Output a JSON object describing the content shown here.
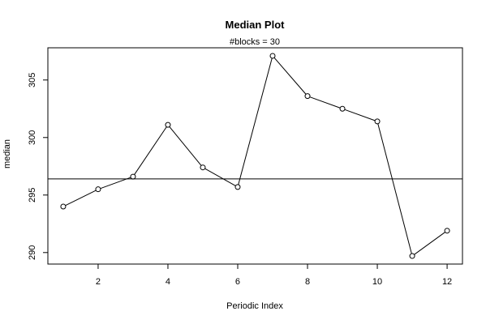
{
  "chart_data": {
    "type": "line",
    "title": "Median Plot",
    "subtitle": "#blocks =  30",
    "xlabel": "Periodic Index",
    "ylabel": "median",
    "x": [
      1,
      2,
      3,
      4,
      5,
      6,
      7,
      8,
      9,
      10,
      11,
      12
    ],
    "values": [
      294.0,
      295.5,
      296.6,
      301.1,
      297.4,
      295.7,
      307.1,
      303.6,
      302.5,
      301.4,
      289.7,
      291.9
    ],
    "hline": 296.4,
    "xlim": [
      0.56,
      12.44
    ],
    "ylim": [
      289.0,
      307.8
    ],
    "xticks": [
      2,
      4,
      6,
      8,
      10,
      12
    ],
    "yticks": [
      290,
      295,
      300,
      305
    ],
    "xtick_labels": [
      "2",
      "4",
      "6",
      "8",
      "10",
      "12"
    ],
    "ytick_labels": [
      "290",
      "295",
      "300",
      "305"
    ],
    "markers": "open-circle",
    "grid": false,
    "legend": "none",
    "line_color": "#000000"
  }
}
